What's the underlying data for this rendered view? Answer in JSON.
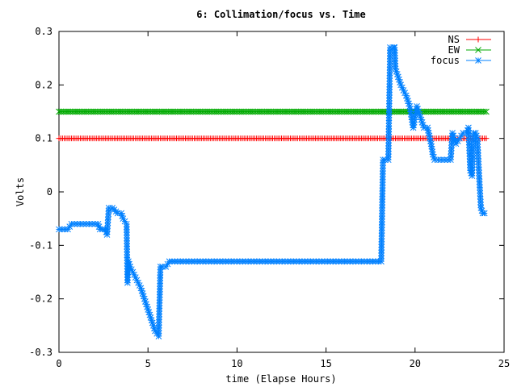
{
  "chart_data": {
    "type": "line",
    "title": "6: Collimation/focus vs. Time",
    "xlabel": "time (Elapse Hours)",
    "ylabel": "Volts",
    "xlim": [
      0,
      25
    ],
    "ylim": [
      -0.3,
      0.3
    ],
    "xticks": [
      0,
      5,
      10,
      15,
      20,
      25
    ],
    "xtick_labels": [
      "0",
      "5",
      "10",
      "15",
      "20",
      "25"
    ],
    "yticks": [
      -0.3,
      -0.2,
      -0.1,
      0,
      0.1,
      0.2,
      0.3
    ],
    "ytick_labels": [
      "-0.3",
      "-0.2",
      "-0.1",
      "0",
      "0.1",
      "0.2",
      "0.3"
    ],
    "grid": false,
    "legend_position": "top-right",
    "series": [
      {
        "name": "NS",
        "color": "#ff0000",
        "marker": "plus",
        "x": [
          0,
          24
        ],
        "y": [
          0.1,
          0.1
        ]
      },
      {
        "name": "EW",
        "color": "#00aa00",
        "marker": "cross",
        "x": [
          0,
          24
        ],
        "y": [
          0.15,
          0.15
        ]
      },
      {
        "name": "focus",
        "color": "#0080ff",
        "marker": "star",
        "x": [
          0,
          0.5,
          0.6,
          0.7,
          2.2,
          2.3,
          2.6,
          2.7,
          2.8,
          3.0,
          3.3,
          3.5,
          3.6,
          3.8,
          3.85,
          3.9,
          4.0,
          4.3,
          4.6,
          4.8,
          5.0,
          5.2,
          5.4,
          5.6,
          5.7,
          5.8,
          6.0,
          6.2,
          6.5,
          18.1,
          18.2,
          18.3,
          18.5,
          18.6,
          18.8,
          18.85,
          18.9,
          19.0,
          19.2,
          19.5,
          19.7,
          19.8,
          19.9,
          20.1,
          20.3,
          20.5,
          20.7,
          20.9,
          21.0,
          21.1,
          21.3,
          22.0,
          22.1,
          22.3,
          22.5,
          22.7,
          22.9,
          23.0,
          23.1,
          23.2,
          23.3,
          23.4,
          23.5,
          23.6,
          23.7,
          23.8,
          23.9
        ],
        "y": [
          -0.07,
          -0.07,
          -0.065,
          -0.06,
          -0.06,
          -0.07,
          -0.07,
          -0.08,
          -0.03,
          -0.03,
          -0.04,
          -0.04,
          -0.05,
          -0.06,
          -0.17,
          -0.13,
          -0.14,
          -0.16,
          -0.18,
          -0.2,
          -0.22,
          -0.24,
          -0.26,
          -0.27,
          -0.14,
          -0.14,
          -0.14,
          -0.13,
          -0.13,
          -0.13,
          0.06,
          0.06,
          0.06,
          0.27,
          0.27,
          0.27,
          0.23,
          0.22,
          0.2,
          0.18,
          0.16,
          0.14,
          0.12,
          0.16,
          0.14,
          0.12,
          0.12,
          0.09,
          0.07,
          0.06,
          0.06,
          0.06,
          0.11,
          0.09,
          0.1,
          0.11,
          0.11,
          0.12,
          0.04,
          0.03,
          0.11,
          0.11,
          0.1,
          0.03,
          -0.03,
          -0.04,
          -0.04
        ]
      }
    ]
  }
}
